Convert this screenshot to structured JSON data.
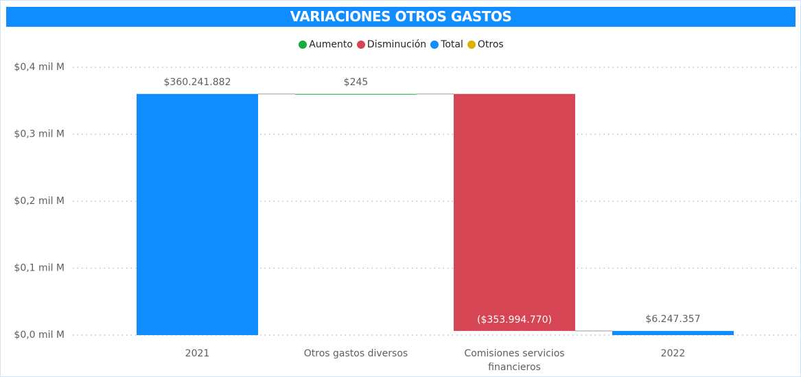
{
  "chart_data": {
    "type": "waterfall",
    "title": "VARIACIONES OTROS GASTOS",
    "categories": [
      "2021",
      "Otros gastos diversos",
      "Comisiones servicios financieros",
      "2022"
    ],
    "series": [
      {
        "name": "Aumento",
        "color": "#1AAB40",
        "values": [
          null,
          245,
          null,
          null
        ],
        "value_labels": [
          null,
          "$245",
          null,
          null
        ]
      },
      {
        "name": "Disminución",
        "color": "#D64554",
        "values": [
          null,
          null,
          -353994770,
          null
        ],
        "value_labels": [
          null,
          null,
          "($353.994.770)",
          null
        ]
      },
      {
        "name": "Total",
        "color": "#118DFF",
        "total": true,
        "values": [
          360241882,
          null,
          null,
          6247357
        ],
        "value_labels": [
          "$360.241.882",
          null,
          null,
          "$6.247.357"
        ]
      },
      {
        "name": "Otros",
        "color": "#D9B300",
        "values": [
          null,
          null,
          null,
          null
        ]
      }
    ],
    "ylim": [
      0,
      400000000
    ],
    "yticks": [
      {
        "value": 0,
        "label": "$0,0 mil M"
      },
      {
        "value": 100000000,
        "label": "$0,1 mil M"
      },
      {
        "value": 200000000,
        "label": "$0,2 mil M"
      },
      {
        "value": 300000000,
        "label": "$0,3 mil M"
      },
      {
        "value": 400000000,
        "label": "$0,4 mil M"
      }
    ],
    "grid": true
  }
}
